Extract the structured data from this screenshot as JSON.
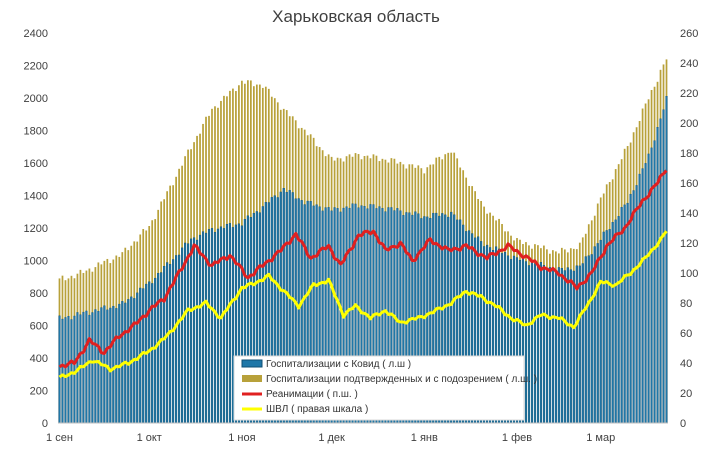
{
  "chart_data": {
    "type": "bar",
    "title": "Харьковская область",
    "x_start": "2020-09-01",
    "x_end": "2021-03-23",
    "x_tick_labels": [
      {
        "label": "1 сен",
        "date": "2020-09-01"
      },
      {
        "label": "1 окт",
        "date": "2020-10-01"
      },
      {
        "label": "1 ноя",
        "date": "2020-11-01"
      },
      {
        "label": "1 дек",
        "date": "2020-12-01"
      },
      {
        "label": "1 янв",
        "date": "2021-01-01"
      },
      {
        "label": "1 фев",
        "date": "2021-02-01"
      },
      {
        "label": "1 мар",
        "date": "2021-03-01"
      }
    ],
    "y_left": {
      "min": 0,
      "max": 2400,
      "ticks": [
        0,
        200,
        400,
        600,
        800,
        1000,
        1200,
        1400,
        1600,
        1800,
        2000,
        2200,
        2400
      ]
    },
    "y_right": {
      "min": 0,
      "max": 260,
      "ticks": [
        0,
        20,
        40,
        60,
        80,
        100,
        120,
        140,
        160,
        180,
        200,
        220,
        240,
        260
      ]
    },
    "grid": false,
    "legend_position": "bottom-center-inside",
    "series": [
      {
        "name": "Госпитализации с Ковид ( л.ш )",
        "kind": "bar",
        "axis": "left",
        "color": "#1f77a8",
        "keypoints": [
          {
            "date": "2020-09-01",
            "value": 640
          },
          {
            "date": "2020-09-08",
            "value": 670
          },
          {
            "date": "2020-09-15",
            "value": 700
          },
          {
            "date": "2020-09-22",
            "value": 730
          },
          {
            "date": "2020-10-01",
            "value": 860
          },
          {
            "date": "2020-10-08",
            "value": 990
          },
          {
            "date": "2020-10-15",
            "value": 1130
          },
          {
            "date": "2020-10-22",
            "value": 1190
          },
          {
            "date": "2020-11-01",
            "value": 1230
          },
          {
            "date": "2020-11-08",
            "value": 1330
          },
          {
            "date": "2020-11-15",
            "value": 1440
          },
          {
            "date": "2020-11-22",
            "value": 1360
          },
          {
            "date": "2020-12-01",
            "value": 1310
          },
          {
            "date": "2020-12-10",
            "value": 1340
          },
          {
            "date": "2020-12-20",
            "value": 1320
          },
          {
            "date": "2021-01-01",
            "value": 1270
          },
          {
            "date": "2021-01-10",
            "value": 1290
          },
          {
            "date": "2021-01-20",
            "value": 1110
          },
          {
            "date": "2021-02-01",
            "value": 1010
          },
          {
            "date": "2021-02-15",
            "value": 940
          },
          {
            "date": "2021-02-22",
            "value": 960
          },
          {
            "date": "2021-03-01",
            "value": 1130
          },
          {
            "date": "2021-03-10",
            "value": 1360
          },
          {
            "date": "2021-03-17",
            "value": 1640
          },
          {
            "date": "2021-03-23",
            "value": 1990
          }
        ]
      },
      {
        "name": "Госпитализации подтвержденных и с подозрением ( л.ш. )",
        "kind": "bar",
        "axis": "left",
        "color": "#b8a13a",
        "keypoints": [
          {
            "date": "2020-09-01",
            "value": 880
          },
          {
            "date": "2020-09-08",
            "value": 920
          },
          {
            "date": "2020-09-15",
            "value": 980
          },
          {
            "date": "2020-09-22",
            "value": 1040
          },
          {
            "date": "2020-10-01",
            "value": 1210
          },
          {
            "date": "2020-10-08",
            "value": 1450
          },
          {
            "date": "2020-10-15",
            "value": 1700
          },
          {
            "date": "2020-10-22",
            "value": 1930
          },
          {
            "date": "2020-11-01",
            "value": 2100
          },
          {
            "date": "2020-11-08",
            "value": 2080
          },
          {
            "date": "2020-11-15",
            "value": 1930
          },
          {
            "date": "2020-11-22",
            "value": 1800
          },
          {
            "date": "2020-12-01",
            "value": 1620
          },
          {
            "date": "2020-12-10",
            "value": 1650
          },
          {
            "date": "2020-12-20",
            "value": 1620
          },
          {
            "date": "2021-01-01",
            "value": 1560
          },
          {
            "date": "2021-01-10",
            "value": 1680
          },
          {
            "date": "2021-01-20",
            "value": 1350
          },
          {
            "date": "2021-02-01",
            "value": 1120
          },
          {
            "date": "2021-02-15",
            "value": 1050
          },
          {
            "date": "2021-02-22",
            "value": 1090
          },
          {
            "date": "2021-03-01",
            "value": 1380
          },
          {
            "date": "2021-03-10",
            "value": 1700
          },
          {
            "date": "2021-03-17",
            "value": 2000
          },
          {
            "date": "2021-03-23",
            "value": 2240
          }
        ]
      },
      {
        "name": "Реанимации ( п.ш. )",
        "kind": "line",
        "axis": "right",
        "color": "#e02020",
        "keypoints": [
          {
            "date": "2020-09-01",
            "value": 38
          },
          {
            "date": "2020-09-06",
            "value": 40
          },
          {
            "date": "2020-09-11",
            "value": 55
          },
          {
            "date": "2020-09-16",
            "value": 47
          },
          {
            "date": "2020-09-21",
            "value": 58
          },
          {
            "date": "2020-09-26",
            "value": 65
          },
          {
            "date": "2020-10-01",
            "value": 75
          },
          {
            "date": "2020-10-06",
            "value": 83
          },
          {
            "date": "2020-10-11",
            "value": 100
          },
          {
            "date": "2020-10-16",
            "value": 118
          },
          {
            "date": "2020-10-22",
            "value": 105
          },
          {
            "date": "2020-10-28",
            "value": 112
          },
          {
            "date": "2020-11-03",
            "value": 97
          },
          {
            "date": "2020-11-08",
            "value": 105
          },
          {
            "date": "2020-11-14",
            "value": 115
          },
          {
            "date": "2020-11-19",
            "value": 126
          },
          {
            "date": "2020-11-24",
            "value": 110
          },
          {
            "date": "2020-11-30",
            "value": 118
          },
          {
            "date": "2020-12-04",
            "value": 105
          },
          {
            "date": "2020-12-10",
            "value": 125
          },
          {
            "date": "2020-12-15",
            "value": 128
          },
          {
            "date": "2020-12-19",
            "value": 115
          },
          {
            "date": "2020-12-24",
            "value": 120
          },
          {
            "date": "2020-12-28",
            "value": 108
          },
          {
            "date": "2021-01-03",
            "value": 122
          },
          {
            "date": "2021-01-09",
            "value": 115
          },
          {
            "date": "2021-01-15",
            "value": 118
          },
          {
            "date": "2021-01-22",
            "value": 110
          },
          {
            "date": "2021-01-29",
            "value": 118
          },
          {
            "date": "2021-02-03",
            "value": 112
          },
          {
            "date": "2021-02-09",
            "value": 104
          },
          {
            "date": "2021-02-15",
            "value": 100
          },
          {
            "date": "2021-02-21",
            "value": 90
          },
          {
            "date": "2021-02-26",
            "value": 100
          },
          {
            "date": "2021-03-03",
            "value": 118
          },
          {
            "date": "2021-03-09",
            "value": 130
          },
          {
            "date": "2021-03-15",
            "value": 148
          },
          {
            "date": "2021-03-20",
            "value": 160
          },
          {
            "date": "2021-03-23",
            "value": 170
          }
        ]
      },
      {
        "name": "ШВЛ ( правая шкала )",
        "kind": "line",
        "axis": "right",
        "color": "#ffff00",
        "keypoints": [
          {
            "date": "2020-09-01",
            "value": 30
          },
          {
            "date": "2020-09-07",
            "value": 35
          },
          {
            "date": "2020-09-12",
            "value": 42
          },
          {
            "date": "2020-09-18",
            "value": 36
          },
          {
            "date": "2020-09-24",
            "value": 40
          },
          {
            "date": "2020-10-01",
            "value": 48
          },
          {
            "date": "2020-10-07",
            "value": 58
          },
          {
            "date": "2020-10-14",
            "value": 75
          },
          {
            "date": "2020-10-20",
            "value": 80
          },
          {
            "date": "2020-10-25",
            "value": 70
          },
          {
            "date": "2020-11-01",
            "value": 90
          },
          {
            "date": "2020-11-05",
            "value": 93
          },
          {
            "date": "2020-11-10",
            "value": 98
          },
          {
            "date": "2020-11-15",
            "value": 88
          },
          {
            "date": "2020-11-20",
            "value": 78
          },
          {
            "date": "2020-11-25",
            "value": 92
          },
          {
            "date": "2020-11-30",
            "value": 95
          },
          {
            "date": "2020-12-05",
            "value": 72
          },
          {
            "date": "2020-12-09",
            "value": 78
          },
          {
            "date": "2020-12-14",
            "value": 70
          },
          {
            "date": "2020-12-19",
            "value": 75
          },
          {
            "date": "2020-12-24",
            "value": 67
          },
          {
            "date": "2020-12-30",
            "value": 70
          },
          {
            "date": "2021-01-04",
            "value": 74
          },
          {
            "date": "2021-01-10",
            "value": 80
          },
          {
            "date": "2021-01-15",
            "value": 88
          },
          {
            "date": "2021-01-20",
            "value": 84
          },
          {
            "date": "2021-01-25",
            "value": 78
          },
          {
            "date": "2021-01-30",
            "value": 70
          },
          {
            "date": "2021-02-04",
            "value": 65
          },
          {
            "date": "2021-02-09",
            "value": 72
          },
          {
            "date": "2021-02-15",
            "value": 70
          },
          {
            "date": "2021-02-20",
            "value": 64
          },
          {
            "date": "2021-02-25",
            "value": 80
          },
          {
            "date": "2021-03-01",
            "value": 94
          },
          {
            "date": "2021-03-06",
            "value": 92
          },
          {
            "date": "2021-03-11",
            "value": 100
          },
          {
            "date": "2021-03-16",
            "value": 110
          },
          {
            "date": "2021-03-21",
            "value": 122
          },
          {
            "date": "2021-03-23",
            "value": 128
          }
        ]
      }
    ]
  },
  "colors": {
    "text": "#404040",
    "bar_covid": "#1f77a8",
    "bar_covid_edge": "#0f4f74",
    "bar_suspected": "#b8a13a",
    "reanimation": "#e02020",
    "ventilators": "#ffff00"
  }
}
